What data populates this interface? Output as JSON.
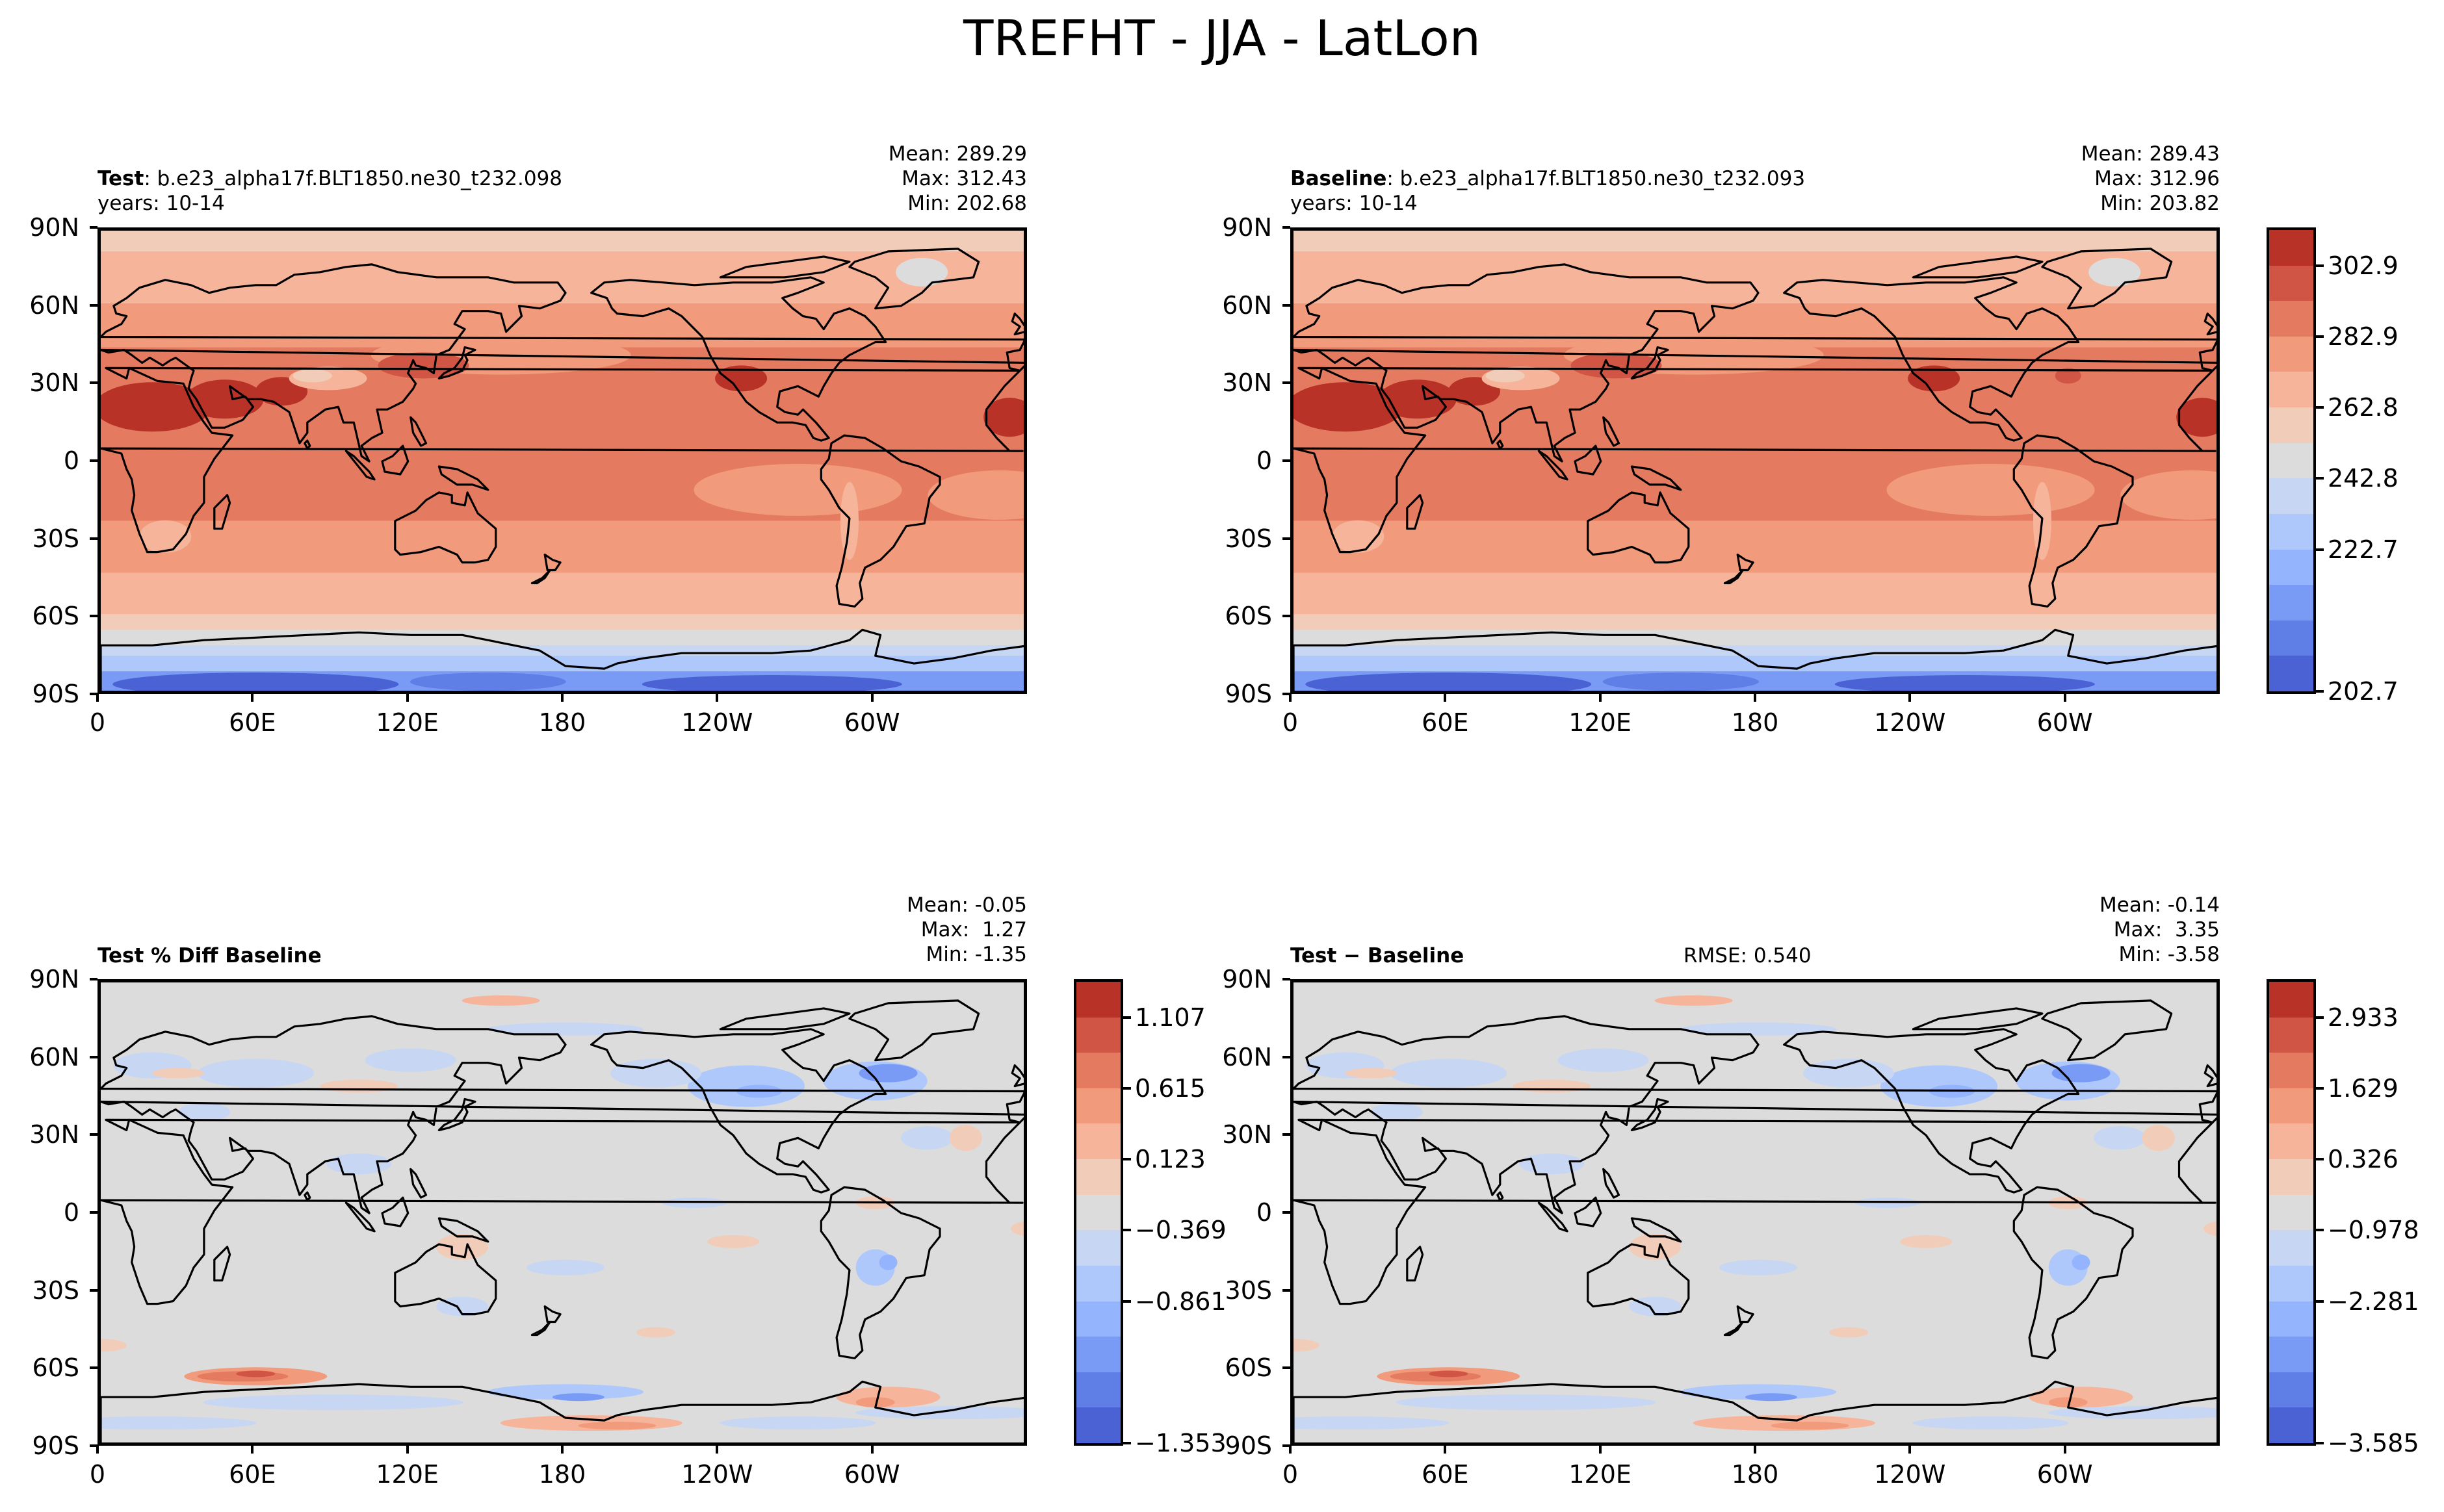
{
  "figure": {
    "title": "TREFHT - JJA - LatLon"
  },
  "colors": {
    "abs_levels": [
      "#4a62d4",
      "#5f7fe6",
      "#7a9bf5",
      "#94b4fd",
      "#afc8fb",
      "#c7d6f2",
      "#dcdcdc",
      "#f1cdb9",
      "#f6b59a",
      "#f19a7c",
      "#e47b60",
      "#d05545",
      "#b83228"
    ],
    "diff_levels": [
      "#4a62d4",
      "#5f7fe6",
      "#7a9bf5",
      "#94b4fd",
      "#afc8fb",
      "#c7d6f2",
      "#dcdcdc",
      "#f1cdb9",
      "#f6b59a",
      "#f19a7c",
      "#e47b60",
      "#d05545",
      "#b83228"
    ]
  },
  "axes": {
    "y_ticks": [
      "90N",
      "60N",
      "30N",
      "0",
      "30S",
      "60S",
      "90S"
    ],
    "x_ticks": [
      "0",
      "60E",
      "120E",
      "180",
      "120W",
      "60W"
    ]
  },
  "panels": [
    {
      "id": "test",
      "label_bold": "Test",
      "label_rest": ": b.e23_alpha17f.BLT1850.ne30_t232.098",
      "subline": "years: 10-14",
      "stats": [
        "Mean: 289.29",
        "Max: 312.43",
        "Min: 202.68"
      ],
      "center_note": ""
    },
    {
      "id": "baseline",
      "label_bold": "Baseline",
      "label_rest": ": b.e23_alpha17f.BLT1850.ne30_t232.093",
      "subline": "years: 10-14",
      "stats": [
        "Mean: 289.43",
        "Max: 312.96",
        "Min: 203.82"
      ],
      "center_note": ""
    },
    {
      "id": "pctdiff",
      "label_bold": "Test % Diff Baseline",
      "label_rest": "",
      "subline": "",
      "stats": [
        "Mean: -0.05",
        "Max:  1.27",
        "Min: -1.35"
      ],
      "center_note": ""
    },
    {
      "id": "diff",
      "label_bold": "Test − Baseline",
      "label_rest": "",
      "subline": "",
      "stats": [
        "Mean: -0.14",
        "Max:  3.35",
        "Min: -3.58"
      ],
      "center_note": "RMSE: 0.540"
    }
  ],
  "colorbars": [
    {
      "id": "abs",
      "ticks": [
        "302.9",
        "282.9",
        "262.8",
        "242.8",
        "222.7",
        "202.7"
      ]
    },
    {
      "id": "pct",
      "ticks": [
        "1.107",
        "0.615",
        "0.123",
        "−0.369",
        "−0.861",
        "−1.353"
      ]
    },
    {
      "id": "diff",
      "ticks": [
        "2.933",
        "1.629",
        "0.326",
        "−0.978",
        "−2.281",
        "−3.585"
      ]
    }
  ]
}
